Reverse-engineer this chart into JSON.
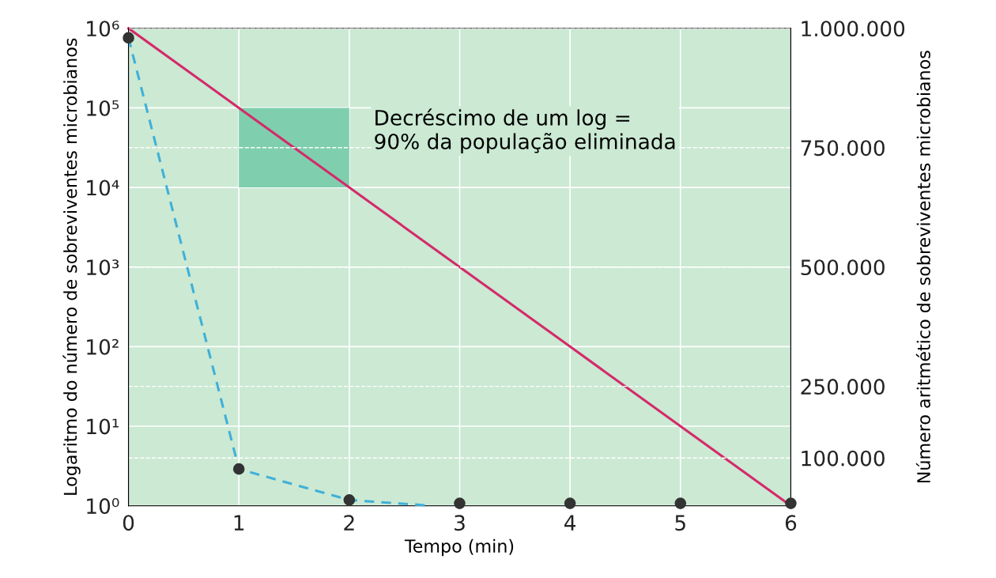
{
  "chart_data": {
    "type": "line",
    "xlabel": "Tempo (min)",
    "ylabel": "Logaritmo do número de sobreviventes microbianos",
    "y2label": "Número aritmético de sobreviventes microbianos",
    "annotations": [
      "Decréscimo de um log =\n90% da população eliminada"
    ],
    "series": [
      {
        "color": "#d42a6a",
        "x": [
          0,
          1,
          2,
          3,
          4,
          5,
          6
        ],
        "values": [
          1000000,
          100000,
          10000,
          1000,
          100,
          10,
          1
        ],
        "line_style": "solid"
      },
      {
        "type": "line",
        "axis": "y2",
        "color": "#3fb0d8",
        "x": [
          0,
          1,
          2,
          2.75
        ],
        "values": [
          980000,
          77000,
          12000,
          0
        ],
        "line_style": "dashed"
      },
      {
        "type": "scatter",
        "axis": "y2",
        "color": "#333333",
        "x": [
          0,
          1,
          2,
          3,
          4,
          5,
          6
        ],
        "values": [
          980000,
          77000,
          12000,
          5000,
          5000,
          5000,
          5000
        ],
        "marker": "circle"
      }
    ],
    "log": "y",
    "xlim": [
      0,
      6
    ],
    "xticks": [
      0,
      1,
      2,
      3,
      4,
      5,
      6
    ],
    "ylim": [
      1,
      1000000
    ],
    "yticks": [
      {
        "value": 1,
        "label": "10⁰"
      },
      {
        "value": 10,
        "label": "10¹"
      },
      {
        "value": 100,
        "label": "10²"
      },
      {
        "value": 1000,
        "label": "10³"
      },
      {
        "value": 10000,
        "label": "10⁴"
      },
      {
        "value": 100000,
        "label": "10⁵"
      },
      {
        "value": 1000000,
        "label": "10⁶"
      }
    ],
    "y2lim": [
      0,
      1000000
    ],
    "y2ticks": [
      {
        "value": 100000,
        "label": "100.000"
      },
      {
        "value": 250000,
        "label": "250.000"
      },
      {
        "value": 500000,
        "label": "500.000"
      },
      {
        "value": 750000,
        "label": "750.000"
      },
      {
        "value": 1000000,
        "label": "1.000.000"
      }
    ],
    "grid": true
  }
}
